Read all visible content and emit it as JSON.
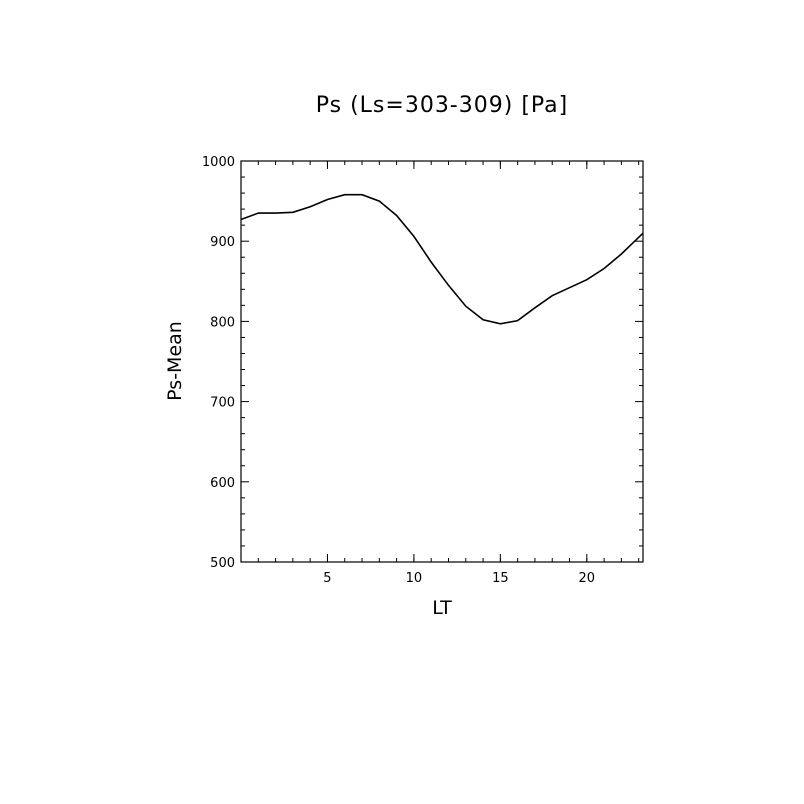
{
  "chart_data": {
    "type": "line",
    "title": "Ps (Ls=303-309) [Pa]",
    "xlabel": "LT",
    "ylabel": "Ps-Mean",
    "xlim": [
      0.0,
      23.25
    ],
    "ylim": [
      500,
      1000
    ],
    "xticks": [
      5,
      10,
      15,
      20
    ],
    "yticks": [
      500,
      600,
      700,
      800,
      900,
      1000
    ],
    "grid": false,
    "line_color": "#000000",
    "series": [
      {
        "x": [
          0,
          1,
          2,
          3,
          4,
          5,
          6,
          7,
          8,
          9,
          10,
          11,
          12,
          13,
          14,
          15,
          16,
          17,
          18,
          19,
          20,
          21,
          22,
          23.25
        ],
        "y": [
          927,
          935,
          935,
          936,
          943,
          952,
          958,
          958,
          950,
          932,
          906,
          874,
          845,
          819,
          802,
          797,
          801,
          817,
          832,
          842,
          852,
          866,
          884,
          910
        ]
      }
    ]
  }
}
